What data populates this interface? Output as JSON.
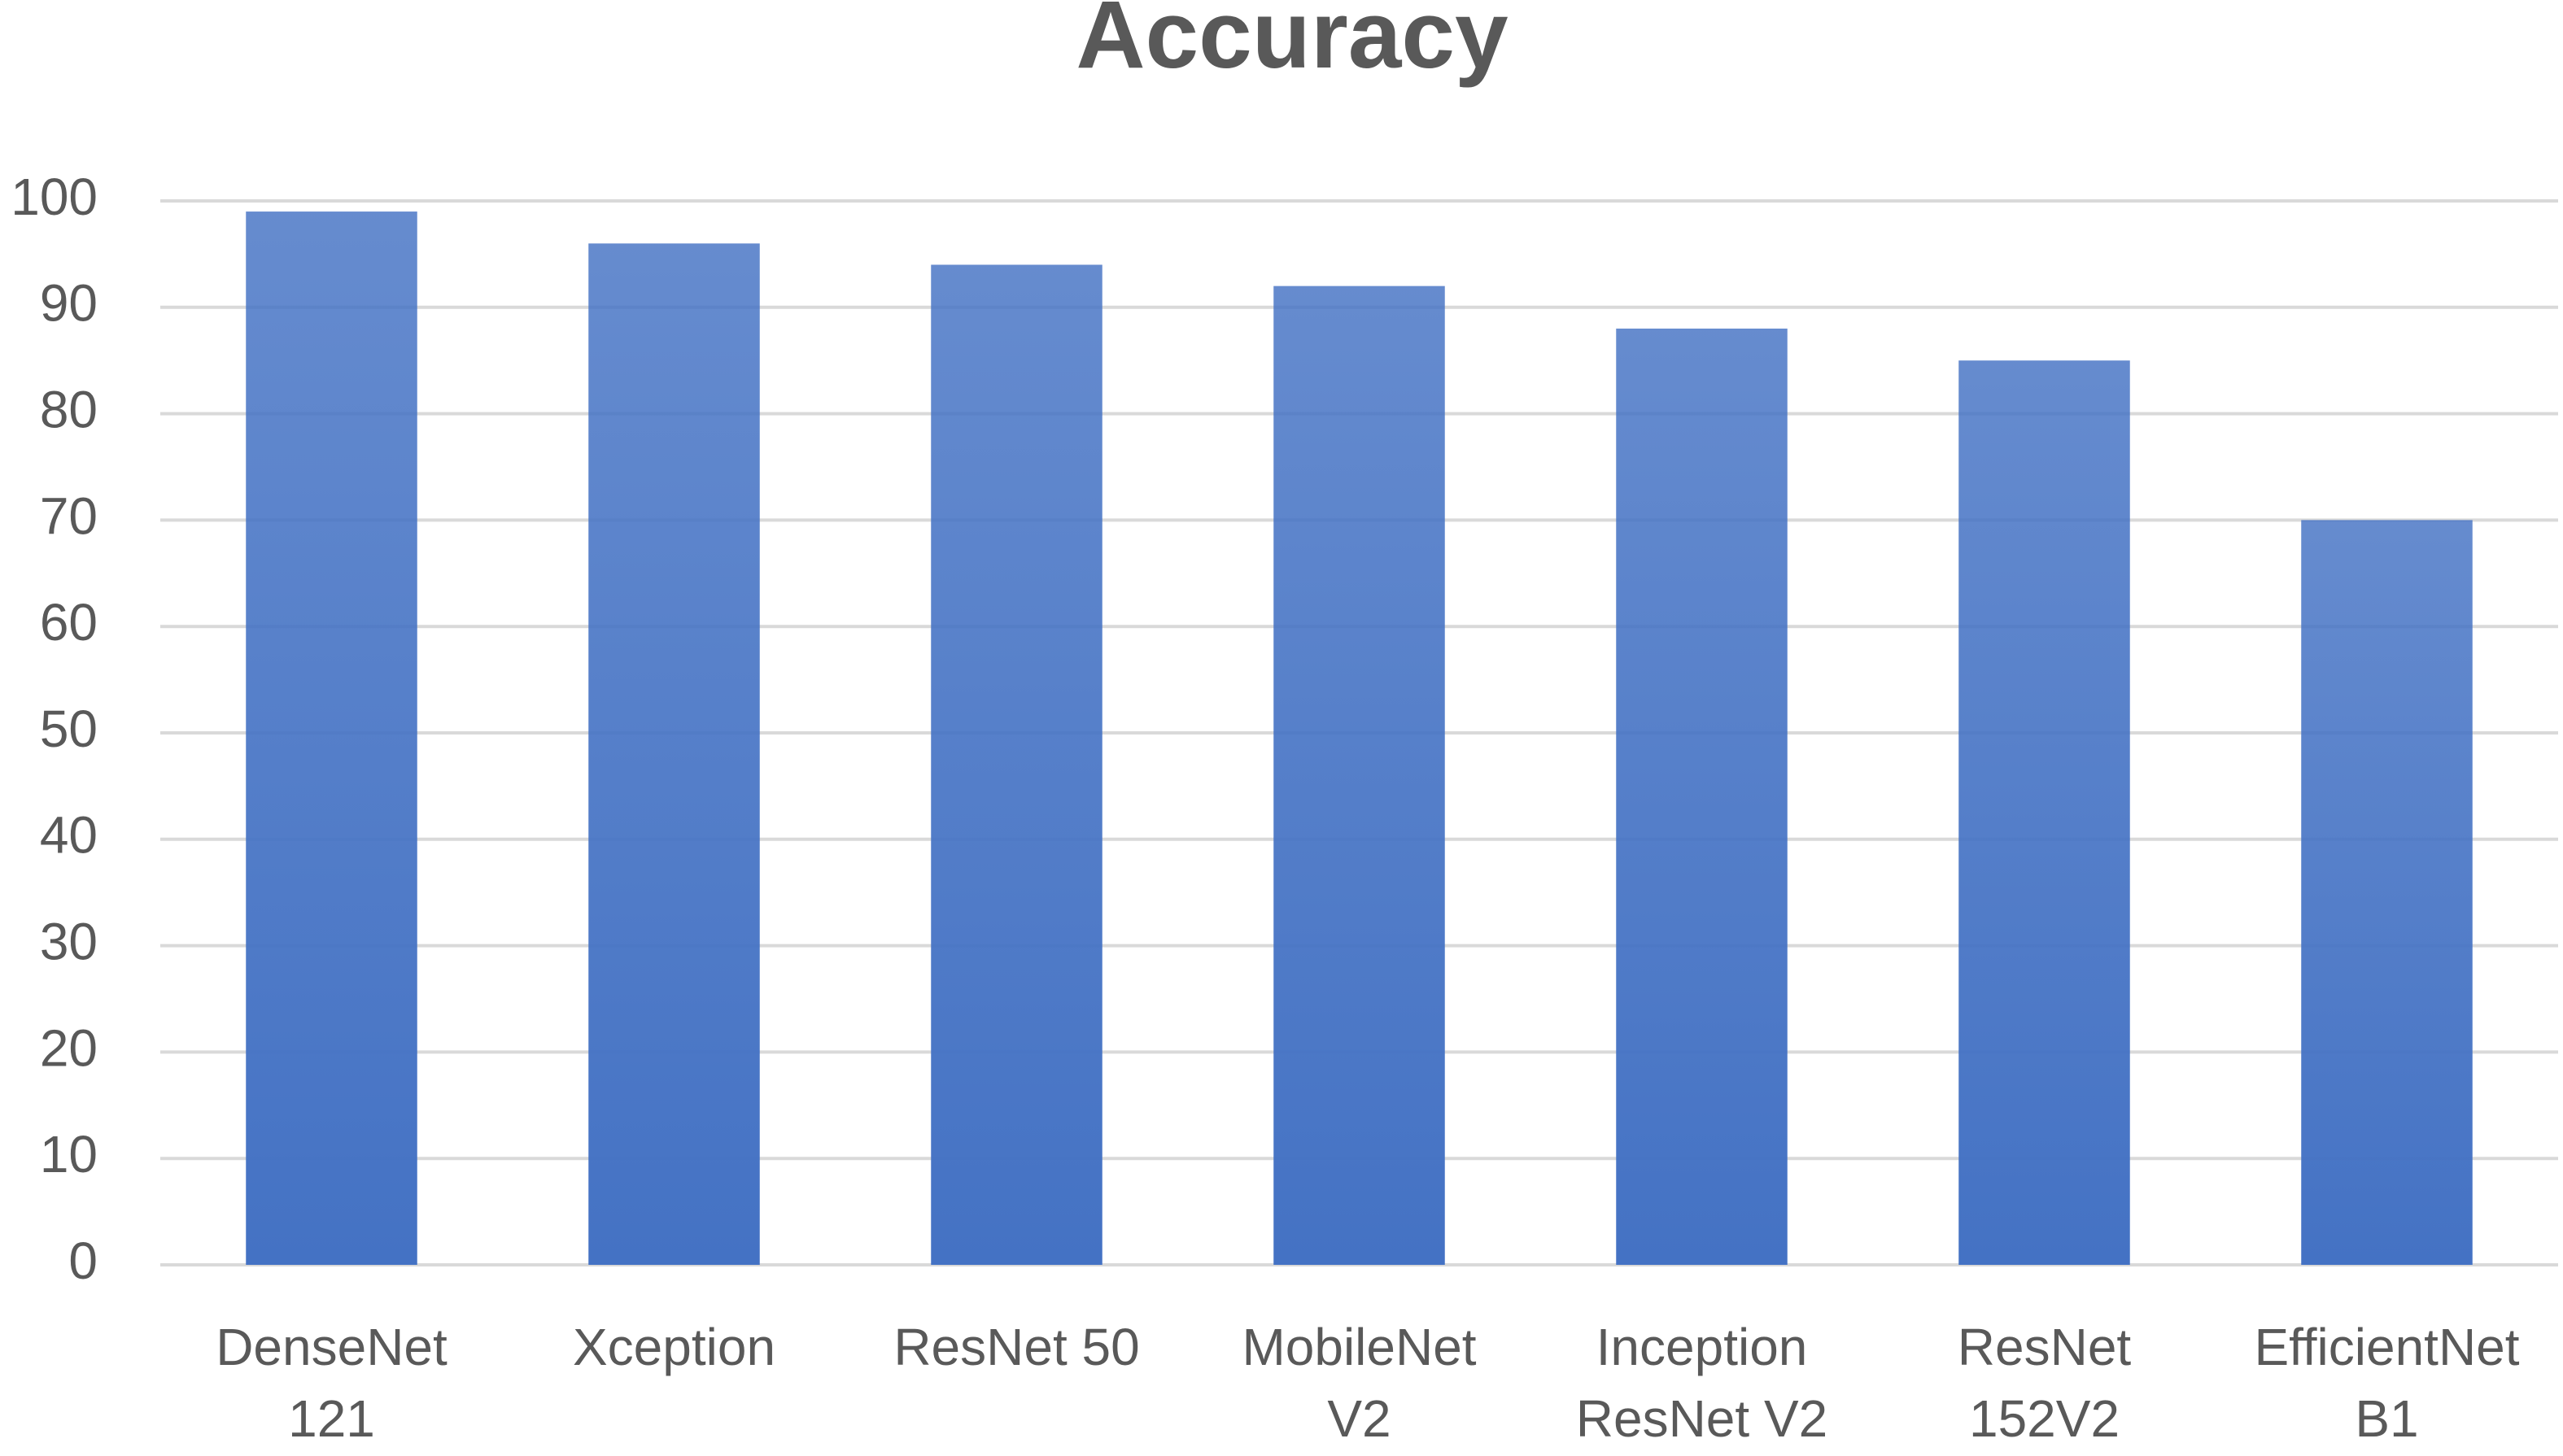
{
  "chart_data": {
    "type": "bar",
    "title": "Accuracy",
    "categories": [
      "DenseNet\n121",
      "Xception",
      "ResNet 50",
      "MobileNet\nV2",
      "Inception\nResNet V2",
      "ResNet\n152V2",
      "EfficientNet\nB1"
    ],
    "values": [
      99,
      96,
      94,
      92,
      88,
      85,
      70
    ],
    "color": "#4472c4",
    "ylim": [
      0,
      100
    ],
    "yticks": [
      0,
      10,
      20,
      30,
      40,
      50,
      60,
      70,
      80,
      90,
      100
    ],
    "grid": true
  }
}
